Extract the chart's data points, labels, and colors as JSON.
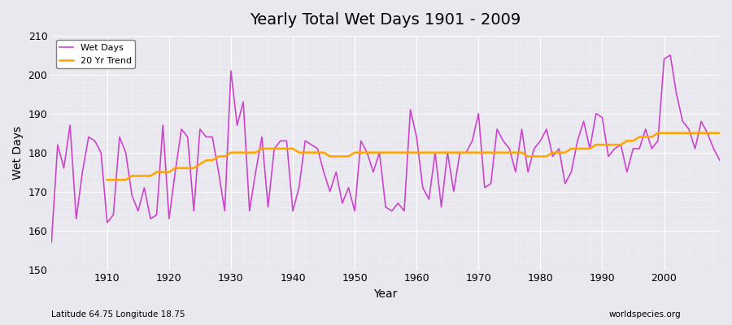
{
  "title": "Yearly Total Wet Days 1901 - 2009",
  "xlabel": "Year",
  "ylabel": "Wet Days",
  "subtitle_left": "Latitude 64.75 Longitude 18.75",
  "subtitle_right": "worldspecies.org",
  "line_color": "#cc44cc",
  "trend_color": "#ffa500",
  "bg_color": "#e8e8ee",
  "ylim": [
    150,
    210
  ],
  "xlim": [
    1901,
    2009
  ],
  "legend_labels": [
    "Wet Days",
    "20 Yr Trend"
  ],
  "years": [
    1901,
    1902,
    1903,
    1904,
    1905,
    1906,
    1907,
    1908,
    1909,
    1910,
    1911,
    1912,
    1913,
    1914,
    1915,
    1916,
    1917,
    1918,
    1919,
    1920,
    1921,
    1922,
    1923,
    1924,
    1925,
    1926,
    1927,
    1928,
    1929,
    1930,
    1931,
    1932,
    1933,
    1934,
    1935,
    1936,
    1937,
    1938,
    1939,
    1940,
    1941,
    1942,
    1943,
    1944,
    1945,
    1946,
    1947,
    1948,
    1949,
    1950,
    1951,
    1952,
    1953,
    1954,
    1955,
    1956,
    1957,
    1958,
    1959,
    1960,
    1961,
    1962,
    1963,
    1964,
    1965,
    1966,
    1967,
    1968,
    1969,
    1970,
    1971,
    1972,
    1973,
    1974,
    1975,
    1976,
    1977,
    1978,
    1979,
    1980,
    1981,
    1982,
    1983,
    1984,
    1985,
    1986,
    1987,
    1988,
    1989,
    1990,
    1991,
    1992,
    1993,
    1994,
    1995,
    1996,
    1997,
    1998,
    1999,
    2000,
    2001,
    2002,
    2003,
    2004,
    2005,
    2006,
    2007,
    2008,
    2009
  ],
  "wet_days": [
    157,
    182,
    176,
    187,
    163,
    175,
    184,
    183,
    180,
    162,
    164,
    184,
    180,
    169,
    165,
    171,
    163,
    164,
    187,
    163,
    175,
    186,
    184,
    165,
    186,
    184,
    184,
    175,
    165,
    201,
    187,
    193,
    165,
    175,
    184,
    166,
    181,
    183,
    183,
    165,
    171,
    183,
    182,
    181,
    175,
    170,
    175,
    167,
    171,
    165,
    183,
    180,
    175,
    180,
    166,
    165,
    167,
    165,
    191,
    184,
    171,
    168,
    180,
    166,
    180,
    170,
    180,
    180,
    183,
    190,
    171,
    172,
    186,
    183,
    181,
    175,
    186,
    175,
    181,
    183,
    186,
    179,
    181,
    172,
    175,
    183,
    188,
    181,
    190,
    189,
    179,
    181,
    182,
    175,
    181,
    181,
    186,
    181,
    183,
    204,
    205,
    195,
    188,
    186,
    181,
    188,
    185,
    181,
    178
  ],
  "trend_years": [
    1910,
    1911,
    1912,
    1913,
    1914,
    1915,
    1916,
    1917,
    1918,
    1919,
    1920,
    1921,
    1922,
    1923,
    1924,
    1925,
    1926,
    1927,
    1928,
    1929,
    1930,
    1931,
    1932,
    1933,
    1934,
    1935,
    1936,
    1937,
    1938,
    1939,
    1940,
    1941,
    1942,
    1943,
    1944,
    1945,
    1946,
    1947,
    1948,
    1949,
    1950,
    1951,
    1952,
    1953,
    1954,
    1955,
    1956,
    1957,
    1958,
    1959,
    1960,
    1961,
    1962,
    1963,
    1964,
    1965,
    1966,
    1967,
    1968,
    1969,
    1970,
    1971,
    1972,
    1973,
    1974,
    1975,
    1976,
    1977,
    1978,
    1979,
    1980,
    1981,
    1982,
    1983,
    1984,
    1985,
    1986,
    1987,
    1988,
    1989,
    1990,
    1991,
    1992,
    1993,
    1994,
    1995,
    1996,
    1997,
    1998,
    1999,
    2000,
    2001,
    2002,
    2003,
    2004,
    2005,
    2006,
    2007,
    2008,
    2009
  ],
  "trend_vals": [
    173,
    173,
    173,
    173,
    174,
    174,
    174,
    174,
    175,
    175,
    175,
    176,
    176,
    176,
    176,
    177,
    178,
    178,
    179,
    179,
    180,
    180,
    180,
    180,
    180,
    181,
    181,
    181,
    181,
    181,
    181,
    180,
    180,
    180,
    180,
    180,
    179,
    179,
    179,
    179,
    180,
    180,
    180,
    180,
    180,
    180,
    180,
    180,
    180,
    180,
    180,
    180,
    180,
    180,
    180,
    180,
    180,
    180,
    180,
    180,
    180,
    180,
    180,
    180,
    180,
    180,
    180,
    180,
    179,
    179,
    179,
    179,
    180,
    180,
    180,
    181,
    181,
    181,
    181,
    182,
    182,
    182,
    182,
    182,
    183,
    183,
    184,
    184,
    184,
    185,
    185,
    185,
    185,
    185,
    185,
    185,
    185,
    185,
    185,
    185
  ]
}
